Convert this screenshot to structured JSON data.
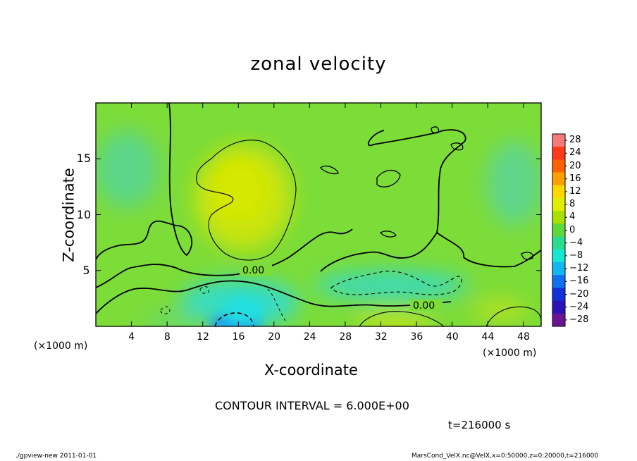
{
  "chart_data": {
    "type": "heatmap",
    "title": "zonal velocity",
    "xlabel": "X-coordinate",
    "ylabel": "Z-coordinate",
    "x_unit": "(×1000 m)",
    "xlim": [
      0,
      50
    ],
    "ylim": [
      0,
      20
    ],
    "x_ticks": [
      4,
      8,
      12,
      16,
      20,
      24,
      28,
      32,
      36,
      40,
      44,
      48
    ],
    "y_ticks": [
      5,
      10,
      15
    ],
    "colorbar": {
      "levels": [
        28,
        24,
        20,
        16,
        12,
        8,
        4,
        0,
        -4,
        -8,
        -12,
        -16,
        -20,
        -24,
        -28
      ],
      "labels": [
        "28",
        "24",
        "20",
        "16",
        "12",
        "8",
        "4",
        "0",
        "−4",
        "−8",
        "−12",
        "−16",
        "−20",
        "−24",
        "−28"
      ],
      "colors": [
        "#f57a7a",
        "#ff3a1a",
        "#ff6000",
        "#ffa000",
        "#ffd800",
        "#e0ee00",
        "#a8e000",
        "#5cd83a",
        "#28dc90",
        "#18e6d4",
        "#12b6f0",
        "#1070f0",
        "#1430d8",
        "#2a12b8",
        "#6a1494"
      ]
    },
    "contour_interval": "CONTOUR INTERVAL = 6.000E+00",
    "contour_labels": [
      "0.00",
      "0.00"
    ],
    "features": [
      {
        "name": "positive core",
        "x": 16,
        "z": 11,
        "value": 6
      },
      {
        "name": "negative core",
        "x": 16,
        "z": 0.8,
        "value": -12
      },
      {
        "name": "negative band",
        "x": 33,
        "z": 3.5,
        "value": -6
      },
      {
        "name": "positive patch",
        "x": 33,
        "z": 0.5,
        "value": 6
      }
    ],
    "time_label": "t=216000  s",
    "footer_left": "./gpview-new   2011-01-01",
    "footer_right": "MarsCond_VelX.nc@VelX,x=0:50000,z=0:20000,t=216000"
  }
}
